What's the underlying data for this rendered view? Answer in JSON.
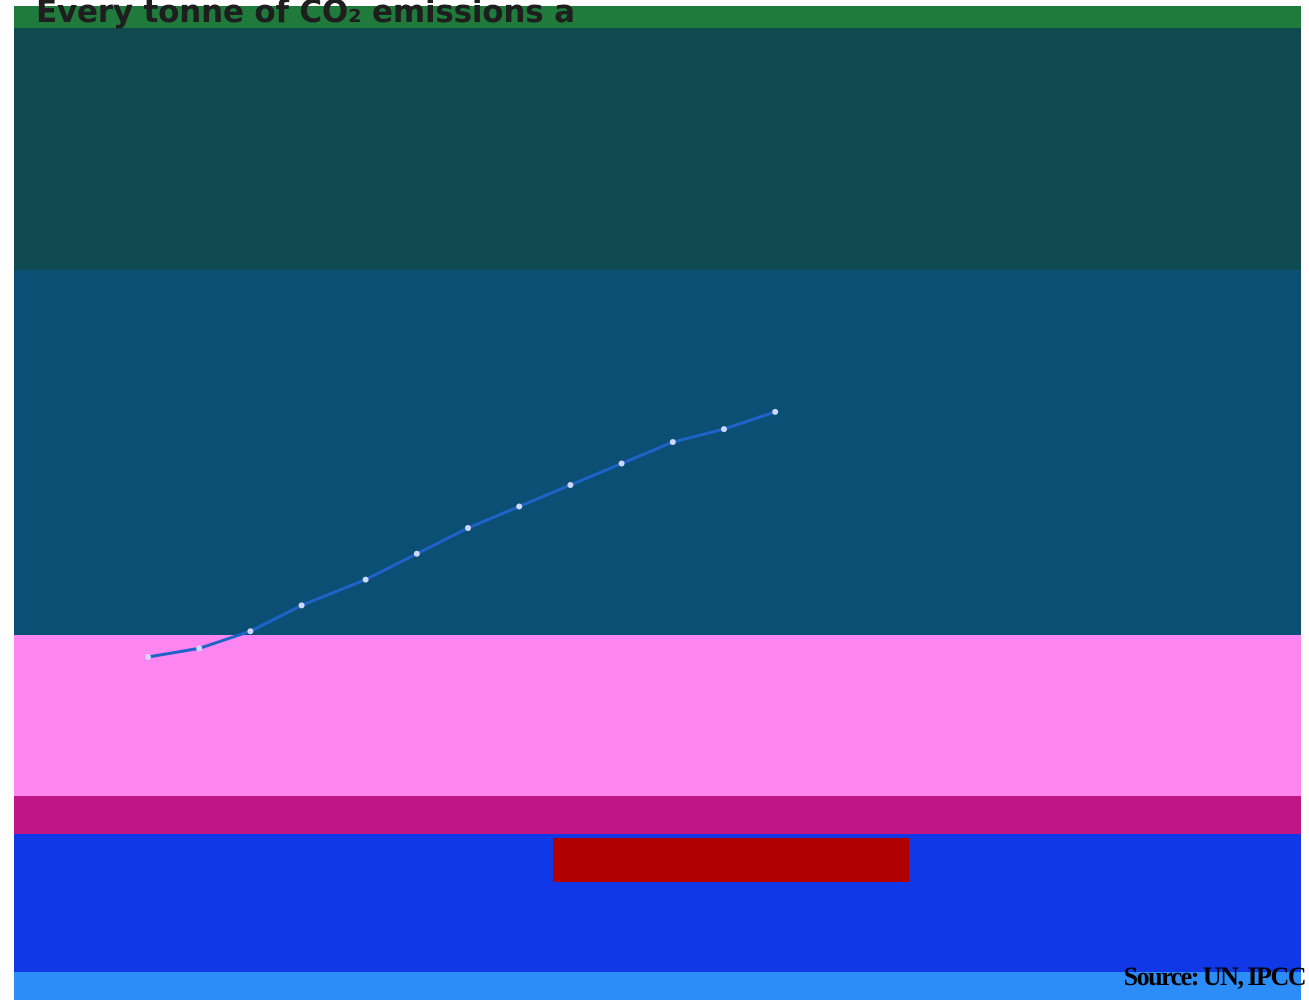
{
  "title": "Every tonne of CO₂ emissions a",
  "source": "Source: UN, IPCC",
  "colors": {
    "data_line": "#1e63c8",
    "data_points": "#cfd8ff",
    "title": "#1e1e1e",
    "source": "#000000"
  },
  "chart_data": {
    "type": "scatter",
    "title": "Every tonne of CO₂ emissions a",
    "xlabel": "",
    "ylabel": "",
    "grid": false,
    "legend": "none",
    "xlim": [
      0,
      1
    ],
    "ylim": [
      0,
      1
    ],
    "points": [
      {
        "x": 0.1,
        "y": 0.1
      },
      {
        "x": 0.14,
        "y": 0.12
      },
      {
        "x": 0.18,
        "y": 0.16
      },
      {
        "x": 0.22,
        "y": 0.22
      },
      {
        "x": 0.27,
        "y": 0.28
      },
      {
        "x": 0.31,
        "y": 0.34
      },
      {
        "x": 0.35,
        "y": 0.4
      },
      {
        "x": 0.39,
        "y": 0.45
      },
      {
        "x": 0.43,
        "y": 0.5
      },
      {
        "x": 0.47,
        "y": 0.55
      },
      {
        "x": 0.51,
        "y": 0.6
      },
      {
        "x": 0.55,
        "y": 0.63
      },
      {
        "x": 0.59,
        "y": 0.67
      }
    ]
  }
}
